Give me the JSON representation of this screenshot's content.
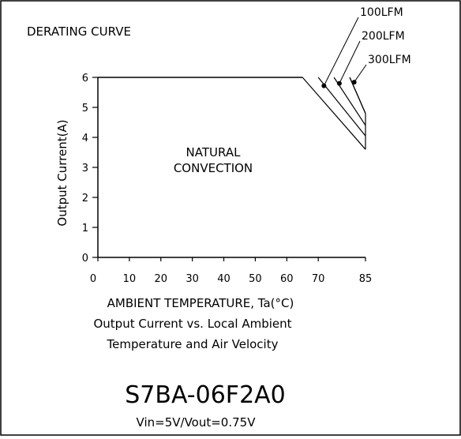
{
  "chart_data": {
    "type": "line",
    "title": "DERATING CURVE",
    "xlabel": "AMBIENT TEMPERATURE, Ta(°C)",
    "ylabel": "Output Current(A)",
    "xlim": [
      0,
      85
    ],
    "ylim": [
      0,
      6
    ],
    "x_ticks": [
      0,
      10,
      20,
      30,
      40,
      50,
      60,
      70,
      85
    ],
    "y_ticks": [
      0,
      1,
      2,
      3,
      4,
      5,
      6
    ],
    "grid": false,
    "series": [
      {
        "name": "NATURAL CONVECTION",
        "x": [
          0,
          65,
          85
        ],
        "y": [
          6,
          6,
          3.6
        ]
      },
      {
        "name": "100LFM",
        "x": [
          0,
          70,
          85
        ],
        "y": [
          6,
          6,
          4.05
        ]
      },
      {
        "name": "200LFM",
        "x": [
          0,
          75,
          85
        ],
        "y": [
          6,
          6,
          4.4
        ]
      },
      {
        "name": "300LFM",
        "x": [
          0,
          80,
          85
        ],
        "y": [
          6,
          6,
          4.8
        ]
      }
    ],
    "annotations": {
      "region_label_line1": "NATURAL",
      "region_label_line2": "CONVECTION",
      "callouts": [
        {
          "label": "100LFM",
          "x": 71.8,
          "y": 5.72
        },
        {
          "label": "200LFM",
          "x": 76.7,
          "y": 5.8
        },
        {
          "label": "300LFM",
          "x": 81.4,
          "y": 5.84
        }
      ]
    }
  },
  "caption": {
    "line1": "Output Current vs. Local Ambient",
    "line2": "Temperature and Air Velocity"
  },
  "part_number": "S7BA-06F2A0",
  "conditions": "Vin=5V/Vout=0.75V"
}
